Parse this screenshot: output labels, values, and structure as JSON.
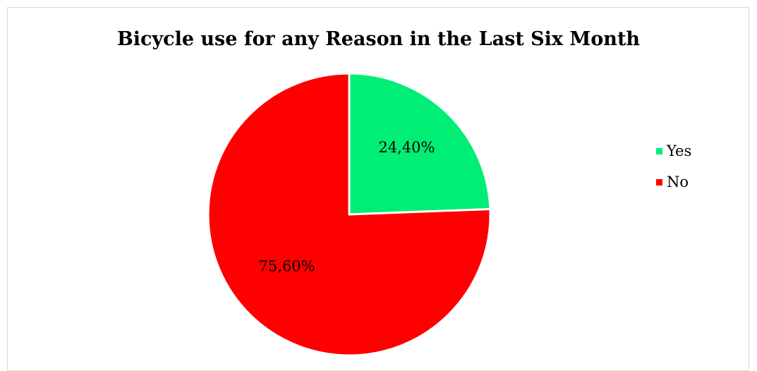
{
  "chart_data": {
    "type": "pie",
    "title": "Bicycle use for any Reason in the Last Six Month",
    "categories": [
      "Yes",
      "No"
    ],
    "values": [
      24.4,
      75.6
    ],
    "data_labels": [
      "24,40%",
      "75,60%"
    ],
    "colors": [
      "#00ee76",
      "#ff0000"
    ],
    "legend_position": "right",
    "start_angle_deg": 0,
    "direction": "clockwise"
  }
}
